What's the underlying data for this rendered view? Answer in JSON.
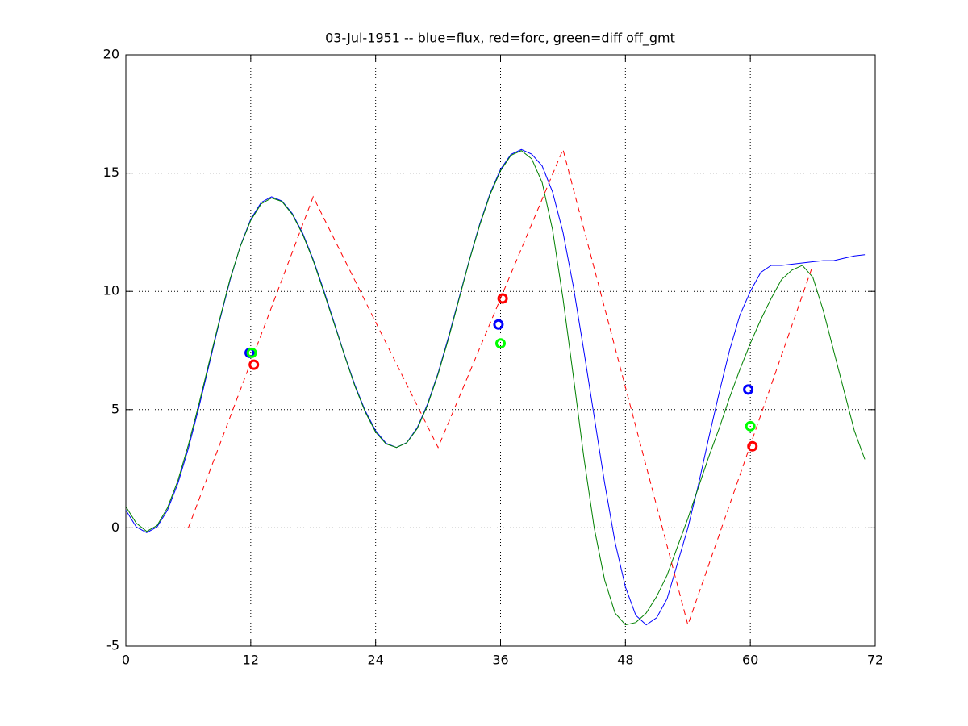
{
  "chart_data": {
    "type": "line",
    "title": "03-Jul-1951 -- blue=flux, red=forc, green=diff off_gmt",
    "xlim": [
      0,
      72
    ],
    "xticks": [
      0,
      12,
      24,
      36,
      48,
      60,
      72
    ],
    "ylim": [
      -5,
      20
    ],
    "yticks": [
      -5,
      0,
      5,
      10,
      15,
      20
    ],
    "grid": true,
    "series": [
      {
        "color": "#0000ff",
        "line": "solid",
        "marker": "none",
        "x": [
          0,
          1,
          2,
          3,
          4,
          5,
          6,
          7,
          8,
          9,
          10,
          11,
          12,
          13,
          14,
          15,
          16,
          17,
          18,
          19,
          20,
          21,
          22,
          23,
          24,
          25,
          26,
          27,
          28,
          29,
          30,
          31,
          32,
          33,
          34,
          35,
          36,
          37,
          38,
          39,
          40,
          41,
          42,
          43,
          44,
          45,
          46,
          47,
          48,
          49,
          50,
          51,
          52,
          53,
          54,
          55,
          56,
          57,
          58,
          59,
          60,
          61,
          62,
          63,
          64,
          65,
          66,
          67,
          68,
          69,
          70,
          71
        ],
        "values": [
          0.75,
          0.04,
          -0.2,
          0.04,
          0.75,
          1.88,
          3.35,
          5.06,
          6.9,
          8.74,
          10.45,
          11.92,
          13.05,
          13.76,
          14.0,
          13.82,
          13.29,
          12.45,
          11.35,
          10.07,
          8.7,
          7.33,
          6.05,
          4.95,
          4.11,
          3.58,
          3.4,
          3.61,
          4.24,
          5.25,
          6.55,
          8.07,
          9.7,
          11.33,
          12.85,
          14.15,
          15.16,
          15.79,
          16.0,
          15.8,
          15.3,
          14.2,
          12.5,
          10.2,
          7.5,
          4.7,
          1.9,
          -0.6,
          -2.5,
          -3.7,
          -4.1,
          -3.8,
          -3.0,
          -1.5,
          0.0,
          1.8,
          3.8,
          5.7,
          7.5,
          9.0,
          10.0,
          10.8,
          11.1,
          11.1,
          11.15,
          11.2,
          11.25,
          11.3,
          11.3,
          11.4,
          11.5,
          11.55
        ]
      },
      {
        "color": "#008000",
        "line": "solid",
        "marker": "none",
        "x": [
          0,
          1,
          2,
          3,
          4,
          5,
          6,
          7,
          8,
          9,
          10,
          11,
          12,
          13,
          14,
          15,
          16,
          17,
          18,
          19,
          20,
          21,
          22,
          23,
          24,
          25,
          26,
          27,
          28,
          29,
          30,
          31,
          32,
          33,
          34,
          35,
          36,
          37,
          38,
          39,
          40,
          41,
          42,
          43,
          44,
          45,
          46,
          47,
          48,
          49,
          50,
          51,
          52,
          53,
          54,
          55,
          56,
          57,
          58,
          59,
          60,
          61,
          62,
          63,
          64,
          65,
          66,
          67,
          68,
          69,
          70,
          71
        ],
        "values": [
          0.9,
          0.2,
          -0.15,
          0.1,
          0.85,
          2.0,
          3.5,
          5.2,
          7.0,
          8.8,
          10.5,
          11.9,
          13.0,
          13.7,
          13.95,
          13.8,
          13.25,
          12.4,
          11.3,
          10.0,
          8.65,
          7.3,
          6.0,
          4.9,
          4.05,
          3.55,
          3.4,
          3.6,
          4.2,
          5.2,
          6.5,
          8.0,
          9.65,
          11.3,
          12.8,
          14.1,
          15.1,
          15.75,
          15.95,
          15.6,
          14.6,
          12.6,
          9.7,
          6.4,
          3.0,
          0.0,
          -2.2,
          -3.6,
          -4.1,
          -4.0,
          -3.6,
          -2.9,
          -2.0,
          -0.8,
          0.4,
          1.7,
          3.0,
          4.2,
          5.5,
          6.7,
          7.8,
          8.8,
          9.7,
          10.5,
          10.9,
          11.1,
          10.6,
          9.2,
          7.5,
          5.8,
          4.1,
          2.9
        ]
      },
      {
        "color": "#ff0000",
        "line": "dashed",
        "marker": "none",
        "x": [
          6,
          18,
          30,
          42,
          54,
          66
        ],
        "values": [
          0,
          14,
          3.4,
          16,
          -4.1,
          11.1
        ]
      },
      {
        "color": "#0000ff",
        "line": "none",
        "marker": "o",
        "x": [
          11.9,
          35.8,
          59.8
        ],
        "values": [
          7.4,
          8.6,
          5.85
        ]
      },
      {
        "color": "#00ff00",
        "line": "none",
        "marker": "o",
        "x": [
          12.1,
          36.0,
          60.0
        ],
        "values": [
          7.4,
          7.8,
          4.3
        ]
      },
      {
        "color": "#ff0000",
        "line": "none",
        "marker": "o",
        "x": [
          12.3,
          36.2,
          60.2
        ],
        "values": [
          6.9,
          9.7,
          3.45
        ]
      }
    ]
  }
}
